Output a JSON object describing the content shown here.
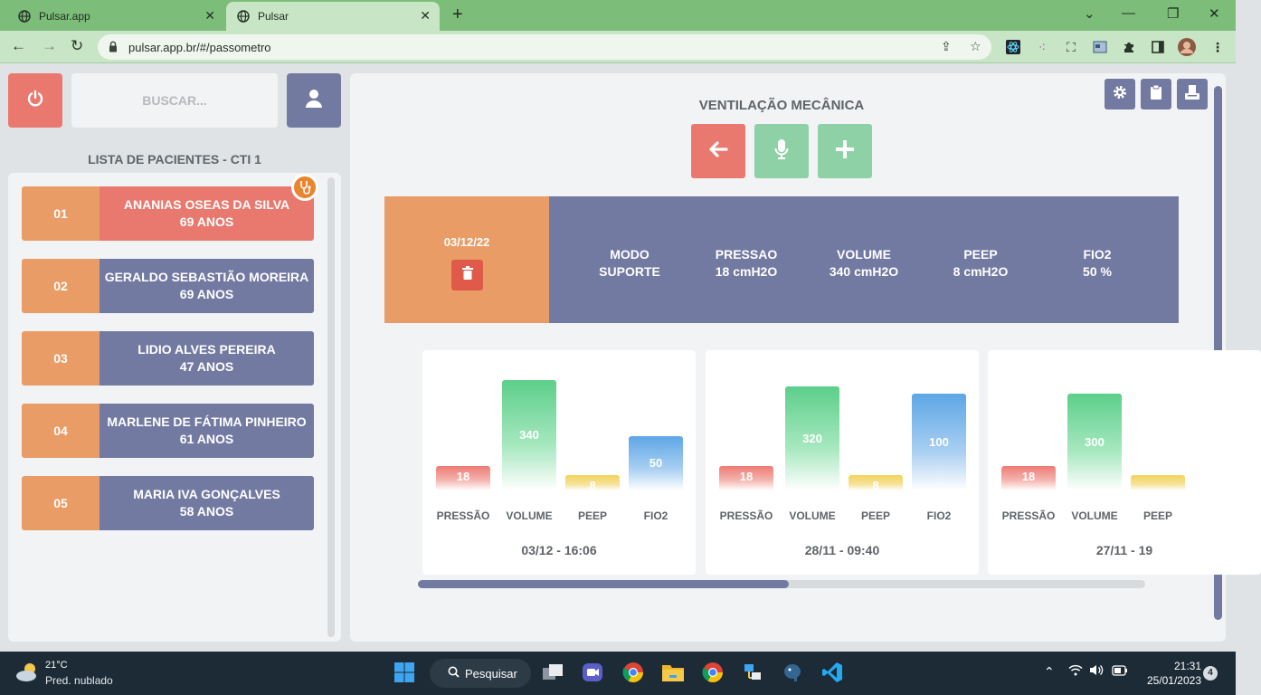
{
  "browser": {
    "tabs": [
      {
        "title": "Pulsar.app"
      },
      {
        "title": "Pulsar"
      }
    ],
    "url": "pulsar.app.br/#/passometro"
  },
  "app": {
    "search_placeholder": "BUSCAR...",
    "list_title": "LISTA DE PACIENTES - CTI 1",
    "patients": [
      {
        "number": "01",
        "name": "ANANIAS OSEAS DA SILVA",
        "age": "69 ANOS"
      },
      {
        "number": "02",
        "name": "GERALDO SEBASTIÃO MOREIRA",
        "age": "69 ANOS"
      },
      {
        "number": "03",
        "name": "LIDIO ALVES PEREIRA",
        "age": "47 ANOS"
      },
      {
        "number": "04",
        "name": "MARLENE DE FÁTIMA PINHEIRO",
        "age": "61 ANOS"
      },
      {
        "number": "05",
        "name": "MARIA IVA GONÇALVES",
        "age": "58 ANOS"
      }
    ],
    "section_title": "VENTILAÇÃO MECÂNICA",
    "record": {
      "date": "03/12/22",
      "params": [
        {
          "label": "MODO",
          "value": "SUPORTE"
        },
        {
          "label": "PRESSAO",
          "value": "18 cmH2O"
        },
        {
          "label": "VOLUME",
          "value": "340 cmH2O"
        },
        {
          "label": "PEEP",
          "value": "8 cmH2O"
        },
        {
          "label": "FIO2",
          "value": "50 %"
        }
      ]
    },
    "history": [
      {
        "date": "03/12 - 16:06",
        "bars": [
          {
            "label": "PRESSÃO",
            "value": "18",
            "level": 0.22,
            "color": "red"
          },
          {
            "label": "VOLUME",
            "value": "340",
            "level": 1.0,
            "color": "green"
          },
          {
            "label": "PEEP",
            "value": "8",
            "level": 0.14,
            "color": "yellow"
          },
          {
            "label": "FIO2",
            "value": "50",
            "level": 0.49,
            "color": "blue"
          }
        ]
      },
      {
        "date": "28/11 - 09:40",
        "bars": [
          {
            "label": "PRESSÃO",
            "value": "18",
            "level": 0.22,
            "color": "red"
          },
          {
            "label": "VOLUME",
            "value": "320",
            "level": 0.94,
            "color": "green"
          },
          {
            "label": "PEEP",
            "value": "8",
            "level": 0.14,
            "color": "yellow"
          },
          {
            "label": "FIO2",
            "value": "100",
            "level": 0.88,
            "color": "blue"
          }
        ]
      },
      {
        "date": "27/11 - 19",
        "bars": [
          {
            "label": "PRESSÃO",
            "value": "18",
            "level": 0.22,
            "color": "red"
          },
          {
            "label": "VOLUME",
            "value": "300",
            "level": 0.88,
            "color": "green"
          },
          {
            "label": "PEEP",
            "value": "",
            "level": 0.14,
            "color": "yellow"
          },
          {
            "label": "",
            "value": "",
            "level": 0,
            "color": "blue"
          }
        ]
      }
    ],
    "scroll_position": 0.51
  },
  "taskbar": {
    "temperature": "21°C",
    "weather": "Pred. nublado",
    "search_label": "Pesquisar",
    "time": "21:31",
    "date": "25/01/2023",
    "notifications": "4"
  },
  "colors": {
    "accent_blue": "#737aa2",
    "accent_red": "#e9796e",
    "accent_orange": "#e99c66",
    "accent_green": "#8fd1a6",
    "browser_green": "#7dbd7a"
  }
}
